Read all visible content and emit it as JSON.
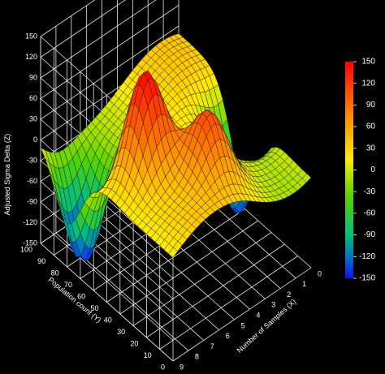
{
  "chart_data": {
    "type": "surface3d",
    "title": "",
    "xlabel": "Number of Samples (X)",
    "ylabel": "Population count (Y)",
    "zlabel": "Adjusted Sigma Delta (Z)",
    "x_ticks": [
      0,
      1,
      2,
      3,
      4,
      5,
      6,
      7,
      8,
      9
    ],
    "y_ticks": [
      0,
      10,
      20,
      30,
      40,
      50,
      60,
      70,
      80,
      90,
      100
    ],
    "z_ticks": [
      -150,
      -120,
      -90,
      -60,
      -30,
      0,
      30,
      60,
      90,
      120,
      150
    ],
    "xlim": [
      0,
      9
    ],
    "ylim": [
      0,
      100
    ],
    "zlim": [
      -150,
      150
    ],
    "colorbar": {
      "range": [
        -150,
        150
      ],
      "ticks": [
        150,
        120,
        90,
        60,
        30,
        0,
        -30,
        -60,
        -90,
        -120,
        -150
      ]
    },
    "features": [
      {
        "kind": "peak",
        "x": 2.5,
        "y": 50,
        "z": 150
      },
      {
        "kind": "peak",
        "x": 4.5,
        "y": 25,
        "z": 95
      },
      {
        "kind": "trough",
        "x": 1,
        "y": 80,
        "z": -150
      },
      {
        "kind": "trough",
        "x": 8.5,
        "y": 50,
        "z": -150
      }
    ],
    "grid": true
  }
}
